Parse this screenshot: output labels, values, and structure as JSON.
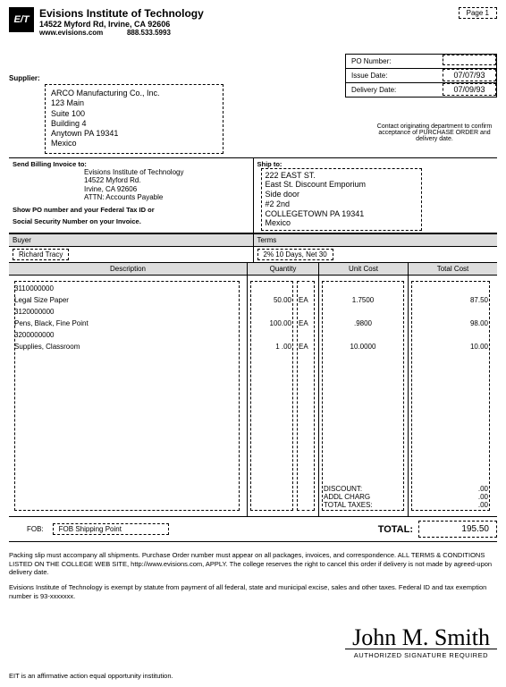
{
  "page_label": "Page 1",
  "header": {
    "logo_text": "E/T",
    "name": "Evisions Institute of Technology",
    "address": "14522 Myford Rd, Irvine, CA 92606",
    "website": "www.evisions.com",
    "phone": "888.533.5993"
  },
  "po": {
    "number_label": "PO Number:",
    "number": "",
    "issue_label": "Issue Date:",
    "issue": "07/07/93",
    "delivery_label": "Delivery Date:",
    "delivery": "07/09/93"
  },
  "supplier_label": "Supplier:",
  "supplier": {
    "name": "ARCO Manufacturing Co., Inc.",
    "l1": "123 Main",
    "l2": "Suite 100",
    "l3": "Building 4",
    "l4": "Anytown PA 19341",
    "l5": "Mexico"
  },
  "contact_note": "Contact originating department to confirm acceptance of PURCHASE ORDER and delivery date.",
  "billing": {
    "label": "Send Billing Invoice to:",
    "l1": "Evisions Institute of Technology",
    "l2": "14522 Myford Rd.",
    "l3": "Irvine, CA 92606",
    "l4": "ATTN: Accounts Payable",
    "note1": "Show PO number and your Federal Tax ID or",
    "note2": "Social Security Number on your Invoice."
  },
  "shipto": {
    "label": "Ship to:",
    "l1": "222 EAST ST.",
    "l2": "East St. Discount Emporium",
    "l3": "Side door",
    "l4": "#2  2nd",
    "l5": "COLLEGETOWN PA 19341",
    "l6": "Mexico"
  },
  "buyer_label": "Buyer",
  "buyer": "Richard Tracy",
  "terms_label": "Terms",
  "terms": "2% 10 Days, Net 30",
  "columns": {
    "desc": "Description",
    "qty": "Quantity",
    "unit": "Unit Cost",
    "total": "Total Cost"
  },
  "items": [
    {
      "code": "3110000000",
      "desc": "Legal Size Paper",
      "qty": "50.00",
      "uom": "EA",
      "unit": "1.7500",
      "total": "87.50"
    },
    {
      "code": "3120000000",
      "desc": "Pens, Black, Fine Point",
      "qty": "100.00",
      "uom": "EA",
      "unit": ".9800",
      "total": "98.00"
    },
    {
      "code": "3200000000",
      "desc": "Supplies, Classroom",
      "qty": "1 .00",
      "uom": "EA",
      "unit": "10.0000",
      "total": "10.00"
    }
  ],
  "summary": {
    "discount_lbl": "DISCOUNT:",
    "discount": ".00",
    "addl_lbl": "ADDL CHARG",
    "addl": ".00",
    "tax_lbl": "TOTAL TAXES:",
    "tax": ".00"
  },
  "fob_label": "FOB:",
  "fob": "FOB Shipping Point",
  "total_label": "TOTAL:",
  "total": "195.50",
  "terms_text1": "Packing slip must accompany all shipments.  Purchase Order number must appear on all packages, invoices, and correspondence.  ALL TERMS & CONDITIONS LISTED ON THE COLLEGE WEB SITE, http://www.evisions.com, APPLY.  The college reserves the right to cancel this order if delivery is not made by agreed-upon delivery date.",
  "terms_text2": "Evisions Institute of Technology is exempt by statute from payment of all federal, state and municipal excise, sales and other taxes.  Federal ID and tax exemption number is 93-xxxxxxx.",
  "signature": "John M. Smith",
  "sig_caption": "AUTHORIZED SIGNATURE REQUIRED",
  "footer": "EIT is an affirmative action equal opportunity institution."
}
